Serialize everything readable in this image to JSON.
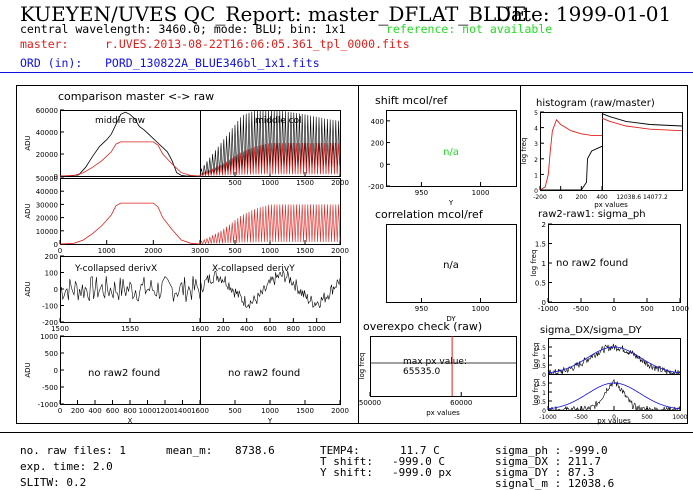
{
  "header": {
    "title": "KUEYEN/UVES QC_Report: master_DFLAT_BLUE",
    "date": "Date: 1999-01-01",
    "info": "central wavelength: 3460.0; mode: BLU; bin: 1x1",
    "reference": "reference: not available",
    "master_label": "master:",
    "master_file": "r.UVES.2013-08-22T16:06:05.361_tpl_0000.fits",
    "ord_label": "ORD (in):",
    "ord_file": "PORD_130822A_BLUE346bl_1x1.fits"
  },
  "colors": {
    "red": "#e0201c",
    "blue": "#1010e0",
    "green": "#22dd22",
    "black": "#000000"
  },
  "footer": {
    "left": [
      "no. raw files: 1",
      "exp. time: 2.0",
      "SLITW: 0.2"
    ],
    "mean_label": "mean_m:",
    "mean_value": "8738.6",
    "temps": [
      "TEMP4:",
      "T shift:",
      "Y shift:"
    ],
    "temp_values": [
      "11.7 C",
      "-999.0 C",
      "-999.0 px"
    ],
    "sigmas": [
      "sigma_ph : -999.0",
      "sigma_DX : 211.7",
      "sigma_DY : 87.3",
      "signal_m : 12038.6"
    ]
  },
  "chart_data": [
    {
      "type": "line",
      "title": "comparison master <-> raw",
      "panels": [
        {
          "name": "middle row",
          "ylabel": "ADU",
          "xlim": [
            0,
            3000
          ],
          "ylim": [
            0,
            60000
          ],
          "yticks": [
            0,
            20000,
            40000,
            60000
          ],
          "series": [
            {
              "name": "master",
              "color": "black",
              "x": [
                0,
                200,
                400,
                550,
                700,
                850,
                1000,
                1100,
                1200,
                1300,
                1400,
                1500,
                1600,
                1700,
                1800,
                1900,
                2000,
                2100,
                2200,
                2300,
                2400,
                2500,
                2600,
                2700,
                2800,
                3000
              ],
              "y": [
                0,
                0,
                1000,
                8000,
                18000,
                27000,
                33000,
                38000,
                47000,
                56000,
                58000,
                56000,
                52000,
                45000,
                42000,
                38000,
                34000,
                30000,
                26000,
                22000,
                14000,
                3000,
                500,
                0,
                0,
                0
              ]
            },
            {
              "name": "raw",
              "color": "red",
              "x": [
                0,
                300,
                500,
                700,
                900,
                1100,
                1200,
                1300,
                1500,
                2000,
                2100,
                2200,
                2400,
                2600,
                2800,
                3000
              ],
              "y": [
                0,
                500,
                3000,
                8000,
                14000,
                22000,
                29000,
                31000,
                31000,
                31000,
                28000,
                20000,
                11000,
                3000,
                500,
                0
              ]
            }
          ]
        },
        {
          "name": "middle col",
          "ylabel": "",
          "xlim": [
            0,
            2000
          ],
          "ylim": [
            0,
            60000
          ],
          "xticks": [
            500,
            1000,
            1500,
            2000
          ],
          "peak_spacing": 40,
          "envelope_black": {
            "x": [
              0,
              300,
              600,
              800,
              1000,
              1200,
              1500,
              1800,
              2000
            ],
            "y": [
              5000,
              30000,
              55000,
              60000,
              60000,
              59000,
              56000,
              52000,
              50000
            ]
          },
          "envelope_red": {
            "x": [
              0,
              300,
              600,
              800,
              1000,
              1200,
              1500,
              1800,
              2000
            ],
            "y": [
              1500,
              10000,
              22000,
              27000,
              30000,
              30000,
              30000,
              30000,
              30000
            ]
          }
        },
        {
          "name": "",
          "ylabel": "ADU",
          "xlim": [
            0,
            3000
          ],
          "ylim": [
            0,
            50000
          ],
          "yticks": [
            0,
            10000,
            20000,
            30000,
            40000,
            50000
          ],
          "xticks": [
            0,
            1000,
            2000,
            3000
          ],
          "series": [
            {
              "name": "raw",
              "color": "red",
              "x": [
                0,
                300,
                500,
                700,
                900,
                1100,
                1200,
                1300,
                1500,
                2000,
                2100,
                2200,
                2400,
                2600,
                2800,
                3000
              ],
              "y": [
                0,
                500,
                3000,
                8000,
                14000,
                22000,
                29000,
                31000,
                31000,
                31000,
                28000,
                20000,
                11000,
                3000,
                500,
                0
              ]
            }
          ]
        },
        {
          "name": "",
          "ylabel": "",
          "xlim": [
            0,
            2000
          ],
          "ylim": [
            0,
            50000
          ],
          "xticks": [
            500,
            1000,
            1500,
            2000
          ],
          "peak_spacing": 40,
          "envelope_red": {
            "x": [
              0,
              300,
              600,
              800,
              1000,
              1200,
              1500,
              1800,
              2000
            ],
            "y": [
              1500,
              10000,
              22000,
              27000,
              30000,
              30000,
              30000,
              30000,
              30000
            ]
          }
        },
        {
          "name": "Y-collapsed derivX",
          "ylabel": "ADU",
          "xlim": [
            1500,
            1600
          ],
          "ylim": [
            -200,
            200
          ],
          "yticks": [
            -200,
            -100,
            0,
            100,
            200
          ],
          "xticks": [
            1500,
            1550,
            1600
          ]
        },
        {
          "name": "X-collapsed derivY",
          "ylabel": "",
          "xlim": [
            0,
            1200
          ],
          "ylim": [
            -200,
            200
          ],
          "xticks": [
            200,
            400,
            600,
            800,
            1000
          ]
        },
        {
          "name": "no raw2 found",
          "ylabel": "ADU",
          "xlabel": "X",
          "xlim": [
            0,
            1600
          ],
          "ylim": [
            -1000,
            1000
          ],
          "yticks": [
            -1000,
            -500,
            0,
            500,
            1000
          ],
          "xticks": [
            0,
            200,
            400,
            600,
            800,
            1000,
            1200,
            1400,
            1600
          ]
        },
        {
          "name": "no raw2 found",
          "ylabel": "",
          "xlabel": "Y",
          "xlim": [
            0,
            2000
          ],
          "ylim": [
            -1000,
            1000
          ],
          "xticks": [
            500,
            1000,
            1500,
            2000
          ]
        }
      ]
    },
    {
      "type": "scatter",
      "title": "shift mcol/ref",
      "xlabel": "Y",
      "xlim": [
        920,
        1030
      ],
      "ylim": [
        -200,
        500
      ],
      "yticks": [
        -200,
        0,
        200,
        400
      ],
      "xticks": [
        950,
        1000
      ],
      "annotation": "n/a"
    },
    {
      "type": "scatter",
      "title": "correlation mcol/ref",
      "xlabel": "DY",
      "xlim": [
        920,
        1030
      ],
      "ylim": [
        0,
        1
      ],
      "xticks": [
        950,
        1000
      ],
      "annotation": "n/a"
    },
    {
      "type": "line",
      "title": "overexpo check (raw)",
      "xlabel": "px values",
      "ylabel": "log freq",
      "xlim": [
        50000,
        66000
      ],
      "xticks": [
        50000,
        60000
      ],
      "vline": 59000,
      "annotation": [
        "max px value:",
        "65535.0"
      ]
    },
    {
      "type": "line",
      "title": "histogram (raw/master)",
      "xlabel": "px values",
      "ylabel": "log freq",
      "ylim": [
        0,
        5
      ],
      "yticks": [
        0,
        1,
        2,
        3,
        4,
        5
      ],
      "left": {
        "xlim": [
          -200,
          400
        ],
        "xticks": [
          -200,
          0,
          200,
          400
        ],
        "red": {
          "x": [
            -200,
            -150,
            -120,
            -100,
            -80,
            -40,
            0,
            100,
            200,
            300,
            400
          ],
          "y": [
            0,
            0.2,
            1,
            2.5,
            3.8,
            4.5,
            4.2,
            3.8,
            3.6,
            3.5,
            3.5
          ]
        },
        "black": {
          "x": [
            -200,
            200,
            250,
            260,
            300,
            400
          ],
          "y": [
            0,
            0,
            0.5,
            2,
            2.5,
            2.8
          ]
        }
      },
      "right": {
        "xticks": [
          12038.6,
          14077.2
        ],
        "red": {
          "x": [
            0,
            0.1,
            0.3,
            0.6,
            1
          ],
          "y": [
            4.6,
            4.4,
            4.1,
            3.9,
            3.8
          ]
        },
        "black": {
          "x": [
            0,
            0.1,
            0.3,
            0.6,
            1
          ],
          "y": [
            4.9,
            4.7,
            4.4,
            4.2,
            4.1
          ]
        }
      }
    },
    {
      "type": "scatter",
      "title": "raw2-raw1: sigma_ph",
      "ylabel": "log freq",
      "xlim": [
        -1000,
        1000
      ],
      "ylim": [
        0,
        2
      ],
      "yticks": [
        0,
        0.5,
        1,
        1.5,
        2
      ],
      "xticks": [
        -1000,
        -500,
        0,
        500,
        1000
      ],
      "annotation": "no raw2 found"
    },
    {
      "type": "line",
      "title": "sigma_DX/sigma_DY",
      "xlabel": "px values",
      "ylabel": "log freq",
      "xlim": [
        -1000,
        1000
      ],
      "ylim": [
        0,
        2
      ],
      "yticks": [
        0,
        0.5,
        1,
        1.5
      ],
      "xticks": [
        -1000,
        -500,
        0,
        500,
        1000
      ],
      "panels": [
        {
          "sigma": 211.7,
          "peak": 1.5
        },
        {
          "sigma": 87.3,
          "peak": 1.5
        }
      ]
    }
  ]
}
